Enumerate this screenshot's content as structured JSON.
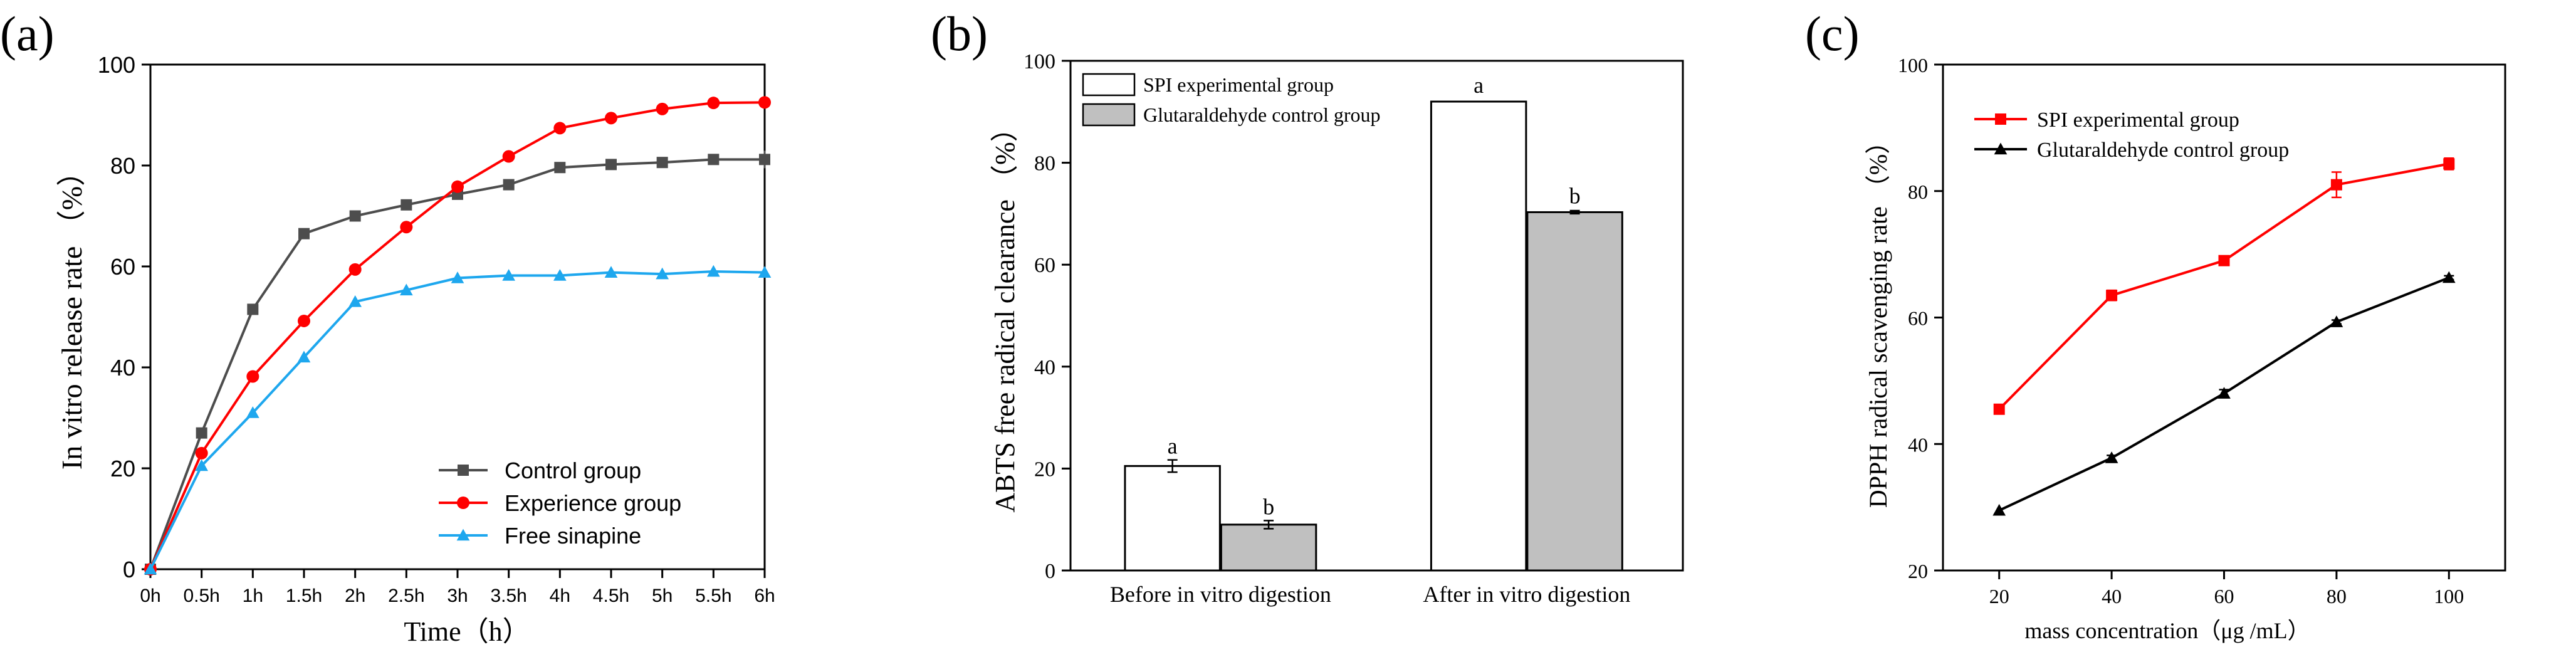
{
  "chart_data": [
    {
      "panel": "(a)",
      "type": "line",
      "title": "",
      "xlabel": "Time（h）",
      "ylabel": "In vitro release rate （%）",
      "categories": [
        "0h",
        "0.5h",
        "1h",
        "1.5h",
        "2h",
        "2.5h",
        "3h",
        "3.5h",
        "4h",
        "4.5h",
        "5h",
        "5.5h",
        "6h"
      ],
      "ylim": [
        0,
        100
      ],
      "yticks": [
        0,
        20,
        40,
        60,
        80,
        100
      ],
      "legend": "bottom-right",
      "series": [
        {
          "name": "Control group",
          "color": "#4d4d4d",
          "marker": "square",
          "values": [
            0,
            27,
            51.5,
            66.5,
            70,
            72.2,
            74.3,
            76.2,
            79.6,
            80.2,
            80.6,
            81.2,
            81.2
          ]
        },
        {
          "name": "Experience group",
          "color": "#ff0000",
          "marker": "circle",
          "values": [
            0,
            23,
            38.2,
            49.2,
            59.4,
            67.8,
            75.8,
            81.8,
            87.4,
            89.4,
            91.2,
            92.4,
            92.5
          ]
        },
        {
          "name": "Free sinapine",
          "color": "#1ea7ee",
          "marker": "triangle",
          "values": [
            0,
            20.5,
            31,
            42,
            53,
            55.3,
            57.7,
            58.2,
            58.2,
            58.8,
            58.5,
            59,
            58.8
          ]
        }
      ]
    },
    {
      "panel": "(b)",
      "type": "bar",
      "title": "",
      "xlabel": "",
      "ylabel": "ABTS free radical clearance （%）",
      "categories": [
        "Before in vitro digestion",
        "After in vitro digestion"
      ],
      "ylim": [
        0,
        100
      ],
      "yticks": [
        0,
        20,
        40,
        60,
        80,
        100
      ],
      "legend": "top-left",
      "series": [
        {
          "name": "SPI experimental group",
          "color": "#ffffff",
          "values": [
            20.5,
            92
          ],
          "errors": [
            1.2,
            0
          ],
          "letters": [
            "a",
            "a"
          ]
        },
        {
          "name": "Glutaraldehyde control group",
          "color": "#c0c0c0",
          "values": [
            9,
            70.3
          ],
          "errors": [
            0.8,
            0.3
          ],
          "letters": [
            "b",
            "b"
          ]
        }
      ]
    },
    {
      "panel": "(c)",
      "type": "line",
      "title": "",
      "xlabel": "mass concentration（μg /mL）",
      "ylabel": "DPPH radical scavenging rate （%）",
      "x": [
        20,
        40,
        60,
        80,
        100
      ],
      "xlim": [
        10,
        110
      ],
      "xticks": [
        20,
        40,
        60,
        80,
        100
      ],
      "ylim": [
        20,
        100
      ],
      "yticks": [
        20,
        40,
        60,
        80,
        100
      ],
      "legend": "top-left",
      "series": [
        {
          "name": "SPI experimental group",
          "color": "#ff0000",
          "marker": "square",
          "values": [
            45.5,
            63.5,
            69,
            81,
            84.3
          ],
          "errors": [
            0,
            0.8,
            0.5,
            2,
            0.9
          ]
        },
        {
          "name": "Glutaraldehyde control group",
          "color": "#000000",
          "marker": "triangle",
          "values": [
            29.5,
            37.8,
            48,
            59.3,
            66.3
          ],
          "errors": [
            0,
            0.4,
            0.6,
            0.3,
            0.3
          ]
        }
      ]
    }
  ]
}
